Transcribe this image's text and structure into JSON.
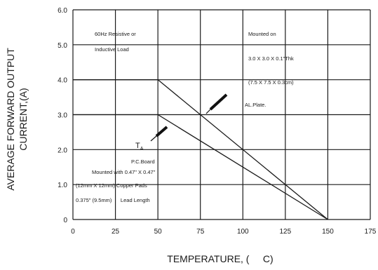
{
  "chart_data": {
    "type": "line",
    "xlabel": "TEMPERATURE, (     C)",
    "ylabel_line1": "AVERAGE FORWARD OUTPUT",
    "ylabel_line2": "CURRENT,(A)",
    "xlim": [
      0,
      175
    ],
    "ylim": [
      0,
      6
    ],
    "x_ticks": [
      {
        "value": 0,
        "label": "0"
      },
      {
        "value": 25,
        "label": "25"
      },
      {
        "value": 50,
        "label": "50"
      },
      {
        "value": 75,
        "label": "75"
      },
      {
        "value": 100,
        "label": "100"
      },
      {
        "value": 125,
        "label": "125"
      },
      {
        "value": 150,
        "label": "150"
      },
      {
        "value": 175,
        "label": "175"
      }
    ],
    "y_ticks": [
      {
        "value": 0,
        "label": "0"
      },
      {
        "value": 1,
        "label": "1.0"
      },
      {
        "value": 2,
        "label": "2.0"
      },
      {
        "value": 3,
        "label": "3.0"
      },
      {
        "value": 4,
        "label": "4.0"
      },
      {
        "value": 5,
        "label": "5.0"
      },
      {
        "value": 6,
        "label": "6.0"
      }
    ],
    "grid": true,
    "series": [
      {
        "x": [
          0,
          50,
          150
        ],
        "y": [
          4,
          4,
          0
        ]
      },
      {
        "x": [
          0,
          50,
          150
        ],
        "y": [
          3,
          3,
          0
        ]
      }
    ],
    "annotations": {
      "load_line1": "60Hz Resistive or",
      "load_line2": "Inductive Load",
      "mount_line1": "Mounted on",
      "mount_line2": "3.0 X 3.0 X 0.1\"Thk",
      "mount_line3": "(7.5 X 7.5 X 0.3cm)",
      "mount_line4": "AL.Plate.",
      "ta_main": "T",
      "ta_sub": "A",
      "pcb_line1": "P.C.Board",
      "pcb_line2": "Mounted with 0.47\" X 0.47\"",
      "pcb_line3": "(12mm X 12mm) Copper Pads",
      "pcb_line4": "0.375\" (9.5mm)      Lead Length"
    }
  }
}
